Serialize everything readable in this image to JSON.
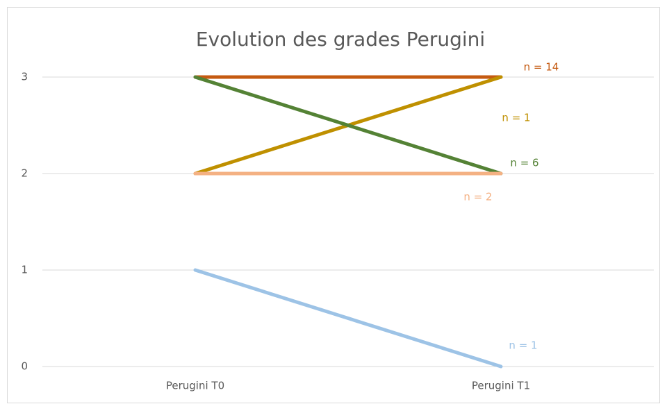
{
  "chart_data": {
    "type": "line",
    "title": "Evolution des grades Perugini",
    "categories": [
      "Perugini T0",
      "Perugini T1"
    ],
    "series": [
      {
        "label": "n = 14",
        "color": "#c55a11",
        "values": [
          3,
          3
        ]
      },
      {
        "label": "n = 1",
        "color": "#bf9000",
        "values": [
          2,
          3
        ]
      },
      {
        "label": "n = 6",
        "color": "#548235",
        "values": [
          3,
          2
        ]
      },
      {
        "label": "n = 2",
        "color": "#f4b183",
        "values": [
          2,
          2
        ]
      },
      {
        "label": "n = 1",
        "color": "#9dc3e6",
        "values": [
          1,
          0
        ]
      }
    ],
    "ylim": [
      0,
      3
    ],
    "yticks": [
      0,
      1,
      2,
      3
    ],
    "grid": true
  }
}
